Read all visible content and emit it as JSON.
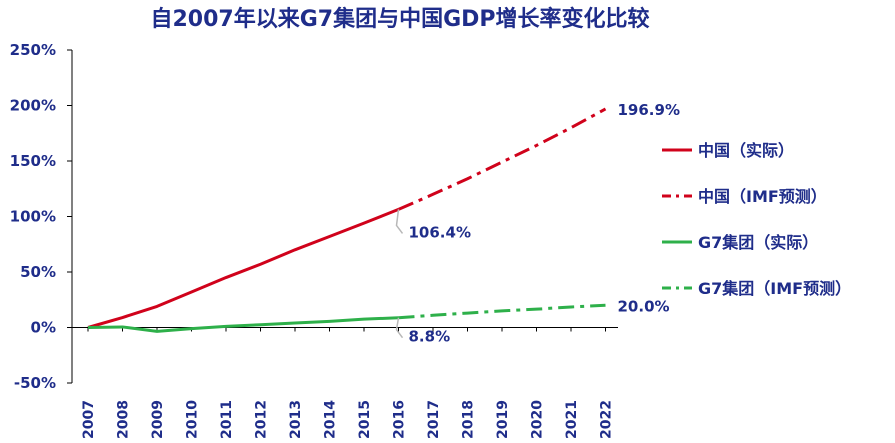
{
  "chart_data": {
    "type": "line",
    "title": "自2007年以来G7集团与中国GDP增长率变化比较",
    "xlabel": "",
    "ylabel": "",
    "categories": [
      "2007",
      "2008",
      "2009",
      "2010",
      "2011",
      "2012",
      "2013",
      "2014",
      "2015",
      "2016",
      "2017",
      "2018",
      "2019",
      "2020",
      "2021",
      "2022"
    ],
    "y_ticks": [
      "-50%",
      "0%",
      "50%",
      "100%",
      "150%",
      "200%",
      "250%"
    ],
    "ylim": [
      -50,
      250
    ],
    "grid": false,
    "legend_position": "right",
    "series": [
      {
        "name": "中国（实际）",
        "color": "#d0021b",
        "style": "solid",
        "x": [
          "2007",
          "2008",
          "2009",
          "2010",
          "2011",
          "2012",
          "2013",
          "2014",
          "2015",
          "2016"
        ],
        "values": [
          0,
          9,
          19,
          32,
          45,
          57,
          70,
          82,
          94,
          106.4
        ]
      },
      {
        "name": "中国（IMF预测）",
        "color": "#d0021b",
        "style": "dashdot",
        "x": [
          "2016",
          "2017",
          "2018",
          "2019",
          "2020",
          "2021",
          "2022"
        ],
        "values": [
          106.4,
          120,
          134,
          149,
          164,
          180,
          196.9
        ]
      },
      {
        "name": "G7集团（实际）",
        "color": "#2eb04a",
        "style": "solid",
        "x": [
          "2007",
          "2008",
          "2009",
          "2010",
          "2011",
          "2012",
          "2013",
          "2014",
          "2015",
          "2016"
        ],
        "values": [
          0,
          0.5,
          -3.5,
          -1,
          1,
          2.5,
          4,
          5.5,
          7.5,
          8.8
        ]
      },
      {
        "name": "G7集团（IMF预测）",
        "color": "#2eb04a",
        "style": "dashdot",
        "x": [
          "2016",
          "2017",
          "2018",
          "2019",
          "2020",
          "2021",
          "2022"
        ],
        "values": [
          8.8,
          11,
          13,
          15,
          16.5,
          18.5,
          20.0
        ]
      }
    ],
    "data_labels": [
      {
        "series": 1,
        "x": "2022",
        "text": "196.9%"
      },
      {
        "series": 0,
        "x": "2016",
        "text": "106.4%"
      },
      {
        "series": 2,
        "x": "2016",
        "text": "8.8%"
      },
      {
        "series": 3,
        "x": "2022",
        "text": "20.0%"
      }
    ]
  }
}
